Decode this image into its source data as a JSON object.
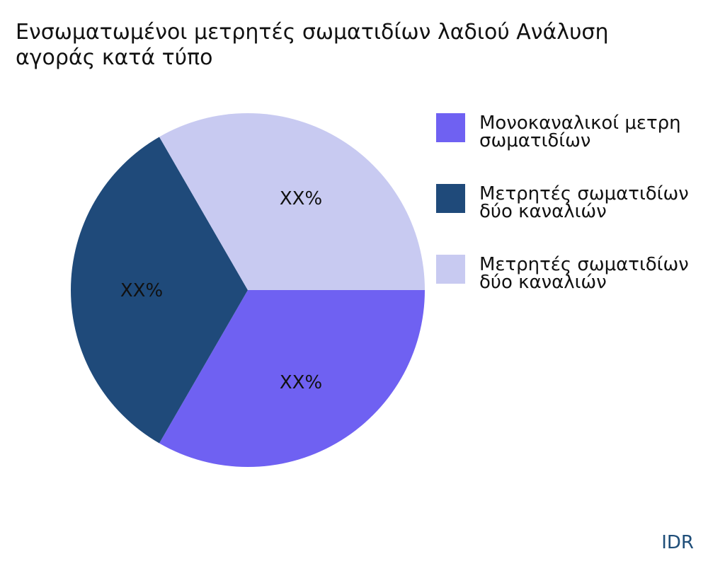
{
  "chart_data": {
    "type": "pie",
    "title_lines": [
      "Ενσωματωμένοι μετρητές σωματιδίων λαδιού Ανάλυση",
      "αγοράς κατά τύπο"
    ],
    "slices": [
      {
        "legend_lines": [
          "Μονοκαναλικοί μετρη",
          "σωματιδίων"
        ],
        "value": 33.33,
        "label": "XX%",
        "color": "#6f61f2"
      },
      {
        "legend_lines": [
          "Μετρητές σωματιδίων",
          "δύο καναλιών"
        ],
        "value": 33.33,
        "label": "XX%",
        "color": "#1f4a7a"
      },
      {
        "legend_lines": [
          "Μετρητές σωματιδίων",
          "δύο καναλιών"
        ],
        "value": 33.33,
        "label": "XX%",
        "color": "#c8caf1"
      }
    ],
    "legend_position": "right",
    "start_angle": "east, clockwise"
  },
  "source": "IDR"
}
